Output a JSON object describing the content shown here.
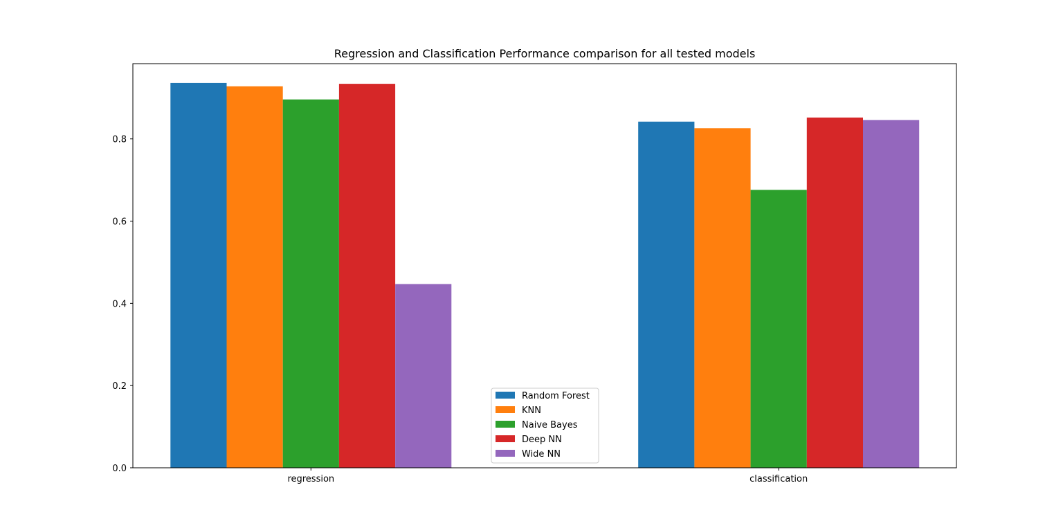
{
  "chart_data": {
    "type": "bar",
    "title": "Regression and Classification Performance comparison for all tested models",
    "xlabel": "",
    "ylabel": "",
    "categories": [
      "regression",
      "classification"
    ],
    "series": [
      {
        "name": "Random Forest",
        "color": "#1f77b4",
        "values": [
          0.936,
          0.842
        ]
      },
      {
        "name": "KNN",
        "color": "#ff7f0e",
        "values": [
          0.928,
          0.826
        ]
      },
      {
        "name": "Naive Bayes",
        "color": "#2ca02c",
        "values": [
          0.896,
          0.676
        ]
      },
      {
        "name": "Deep NN",
        "color": "#d62728",
        "values": [
          0.934,
          0.852
        ]
      },
      {
        "name": "Wide NN",
        "color": "#9467bd",
        "values": [
          0.447,
          0.846
        ]
      }
    ],
    "yticks": [
      "0.0",
      "0.2",
      "0.4",
      "0.6",
      "0.8"
    ],
    "ylim": [
      0,
      0.983
    ],
    "grid": false,
    "legend_position": "lower-center"
  }
}
